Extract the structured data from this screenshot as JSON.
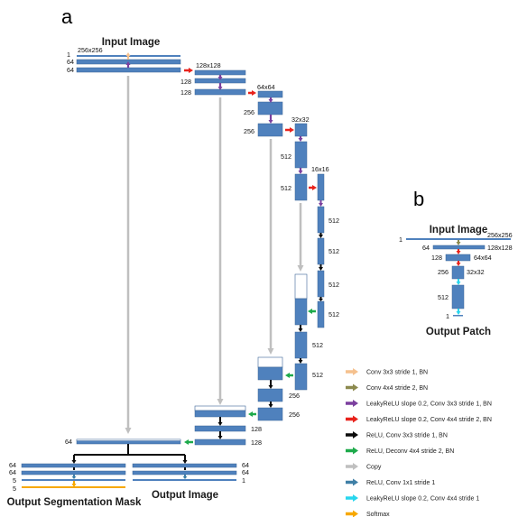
{
  "panel_a": {
    "letter": "a",
    "input_title": "Input Image",
    "output_seg_title": "Output Segmentation Mask",
    "output_img_title": "Output Image",
    "labels": {
      "in_1": "1",
      "in_size": "256x256",
      "in_64a": "64",
      "in_64b": "64",
      "l2_size": "128x128",
      "l2_128a": "128",
      "l2_128b": "128",
      "l3_size": "64x64",
      "l3_256a": "256",
      "l3_256b": "256",
      "l4_size": "32x32",
      "l4_512a": "512",
      "l4_512b": "512",
      "l5_size": "16x16",
      "l5_512a": "512",
      "l5_512b": "512",
      "l5_512c": "512",
      "l5_512d": "512",
      "u4_512": "512",
      "u4_512b": "512",
      "u3_256": "256",
      "u3_256b": "256",
      "u2_128": "128",
      "u2_128b": "128",
      "u1_64": "64",
      "seg_64a": "64",
      "seg_64b": "64",
      "seg_5a": "5",
      "seg_5b": "5",
      "img_64a": "64",
      "img_64b": "64",
      "img_1": "1"
    }
  },
  "panel_b": {
    "letter": "b",
    "input_title": "Input Image",
    "output_title": "Output Patch",
    "labels": {
      "b_1": "1",
      "b_size1": "256x256",
      "b_64": "64",
      "b_size2": "128x128",
      "b_128": "128",
      "b_size3": "64x64",
      "b_256": "256",
      "b_size4": "32x32",
      "b_512": "512",
      "b_1out": "1"
    }
  },
  "legend": [
    {
      "label": "Conv 3x3 stride 1, BN",
      "color": "#F5C18E"
    },
    {
      "label": "Conv 4x4 stride 2, BN",
      "color": "#8C8A4E"
    },
    {
      "label": "LeakyReLU slope 0.2, Conv 3x3 stride 1, BN",
      "color": "#7B3F9E"
    },
    {
      "label": "LeakyReLU slope 0.2, Conv 4x4 stride 2, BN",
      "color": "#E8221B"
    },
    {
      "label": "ReLU, Conv 3x3 stride 1, BN",
      "color": "#0A0A0A"
    },
    {
      "label": "ReLU, Deconv 4x4 stride 2, BN",
      "color": "#1EAA4B"
    },
    {
      "label": "Copy",
      "color": "#BFBFBF"
    },
    {
      "label": "ReLU, Conv 1x1 stride 1",
      "color": "#3F7FA6"
    },
    {
      "label": "LeakyReLU slope 0.2, Conv 4x4 stride 1",
      "color": "#27D6EE"
    },
    {
      "label": "Softmax",
      "color": "#F7A800"
    }
  ],
  "colors": {
    "block_fill": "#4F81BD",
    "block_stroke": "#3A6596",
    "copy_line": "#BFBFBF"
  }
}
